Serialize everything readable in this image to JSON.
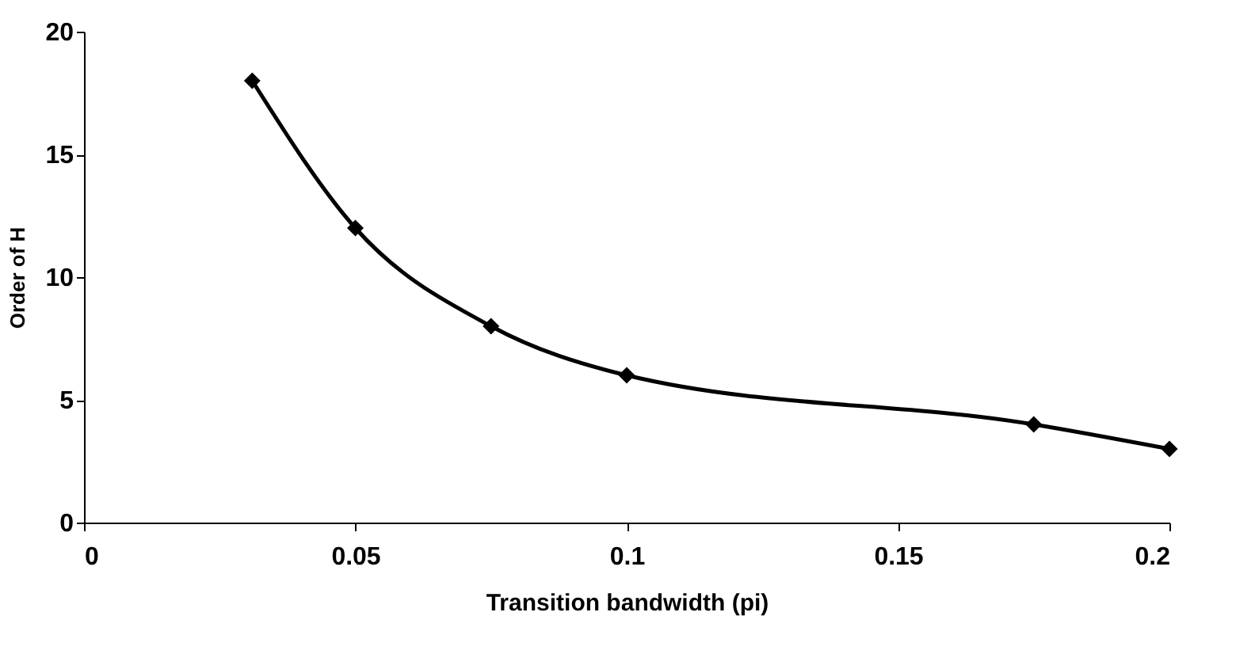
{
  "chart_data": {
    "type": "line",
    "xlabel": "Transition bandwidth (pi)",
    "ylabel": "Order of H",
    "x": [
      0.031,
      0.05,
      0.075,
      0.1,
      0.175,
      0.2
    ],
    "series": [
      {
        "color": "#000000",
        "values": [
          18,
          12,
          8,
          6,
          4,
          3
        ]
      }
    ],
    "xlim": [
      0,
      0.2
    ],
    "xticks": [
      0,
      0.05,
      0.1,
      0.15,
      0.2
    ],
    "ylim": [
      0,
      20
    ],
    "yticks": [
      0,
      5,
      10,
      15,
      20
    ],
    "grid": false,
    "marker": "diamond",
    "line_style": "solid"
  }
}
